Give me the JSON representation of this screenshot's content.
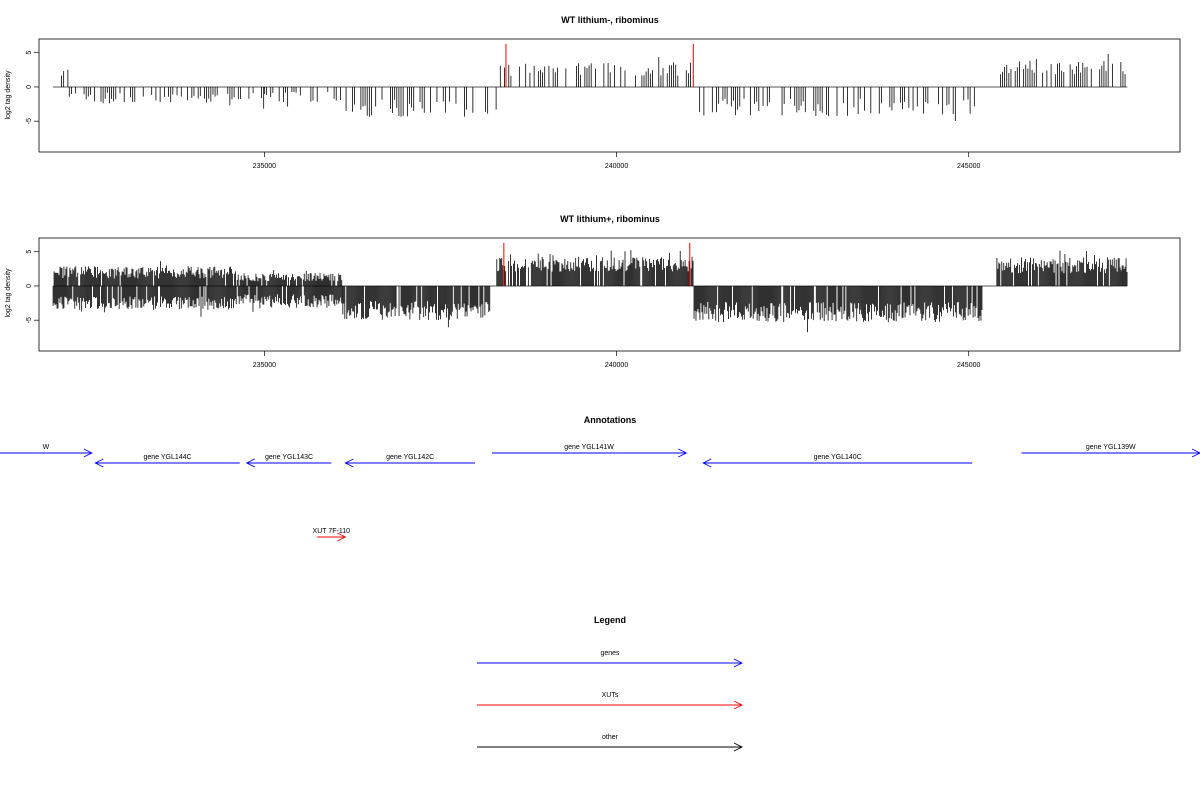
{
  "chart_data": [
    {
      "type": "bar",
      "title": "WT lithium-, ribominus",
      "xlabel": "",
      "ylabel": "log2 tag density",
      "xlim": [
        231800,
        248000
      ],
      "ylim": [
        -9.5,
        7
      ],
      "x_ticks": [
        235000,
        240000,
        245000
      ],
      "y_ticks": [
        -5,
        0,
        5
      ],
      "density": "sparse",
      "segments": [
        {
          "from": 232000,
          "to": 232250,
          "sign": 1,
          "mean": 1.8,
          "amp": 1.0
        },
        {
          "from": 232200,
          "to": 235000,
          "sign": -1,
          "mean": 1.6,
          "amp": 0.8
        },
        {
          "from": 235000,
          "to": 236100,
          "sign": -1,
          "mean": 1.5,
          "amp": 0.8
        },
        {
          "from": 236100,
          "to": 238300,
          "sign": -1,
          "mean": 3.2,
          "amp": 1.4
        },
        {
          "from": 238350,
          "to": 241050,
          "sign": 1,
          "mean": 2.6,
          "amp": 1.0
        },
        {
          "from": 241150,
          "to": 245100,
          "sign": -1,
          "mean": 3.0,
          "amp": 1.3
        },
        {
          "from": 245450,
          "to": 247250,
          "sign": 1,
          "mean": 2.8,
          "amp": 1.2
        }
      ],
      "highlights": [
        238430,
        241090
      ],
      "highlight_height": 6.3,
      "colors": {
        "bars": "#000000",
        "highlight": "#ff0000",
        "baseline": "#555555"
      }
    },
    {
      "type": "bar",
      "title": "WT lithium+, ribominus",
      "xlabel": "",
      "ylabel": "log2 tag density",
      "xlim": [
        231800,
        248000
      ],
      "ylim": [
        -9.5,
        7
      ],
      "x_ticks": [
        235000,
        240000,
        245000
      ],
      "y_ticks": [
        -5,
        0,
        5
      ],
      "density": "dense",
      "segments": [
        {
          "from": 232000,
          "to": 234600,
          "sign": 1,
          "mean": 2.0,
          "amp": 0.9
        },
        {
          "from": 232000,
          "to": 234600,
          "sign": -1,
          "mean": 2.5,
          "amp": 1.0
        },
        {
          "from": 234600,
          "to": 236100,
          "sign": 1,
          "mean": 1.3,
          "amp": 0.6
        },
        {
          "from": 234600,
          "to": 236100,
          "sign": -1,
          "mean": 2.2,
          "amp": 1.0
        },
        {
          "from": 236100,
          "to": 238200,
          "sign": -1,
          "mean": 3.6,
          "amp": 1.4
        },
        {
          "from": 238300,
          "to": 241100,
          "sign": 1,
          "mean": 3.2,
          "amp": 1.1
        },
        {
          "from": 241100,
          "to": 245200,
          "sign": -1,
          "mean": 3.8,
          "amp": 1.5
        },
        {
          "from": 245400,
          "to": 247250,
          "sign": 1,
          "mean": 3.0,
          "amp": 1.2
        }
      ],
      "highlights": [
        238400,
        241040
      ],
      "highlight_height": 6.3,
      "colors": {
        "bars": "#000000",
        "highlight": "#ff0000",
        "baseline": "#555555"
      }
    }
  ],
  "annotations": {
    "title": "Annotations",
    "features": [
      {
        "label": "W",
        "kind": "gene",
        "strand": "+",
        "from": 231200,
        "to": 232550,
        "row": 0
      },
      {
        "label": "gene YGL144C",
        "kind": "gene",
        "strand": "-",
        "from": 232600,
        "to": 234650,
        "row": 1
      },
      {
        "label": "gene YGL143C",
        "kind": "gene",
        "strand": "-",
        "from": 234750,
        "to": 235950,
        "row": 1
      },
      {
        "label": "gene YGL142C",
        "kind": "gene",
        "strand": "-",
        "from": 236150,
        "to": 237990,
        "row": 1
      },
      {
        "label": "gene YGL141W",
        "kind": "gene",
        "strand": "+",
        "from": 238230,
        "to": 240990,
        "row": 0
      },
      {
        "label": "gene YGL140C",
        "kind": "gene",
        "strand": "-",
        "from": 241230,
        "to": 245050,
        "row": 1
      },
      {
        "label": "gene YGL139W",
        "kind": "gene",
        "strand": "+",
        "from": 245750,
        "to": 248950,
        "row": 0
      },
      {
        "label": "XUT 7F-110",
        "kind": "xut",
        "strand": "+",
        "from": 235750,
        "to": 236150,
        "row": 2
      }
    ]
  },
  "legend": {
    "title": "Legend",
    "items": [
      {
        "label": "genes",
        "color": "#0000ff"
      },
      {
        "label": "XUTs",
        "color": "#ff0000"
      },
      {
        "label": "other",
        "color": "#000000"
      }
    ]
  },
  "colors": {
    "gene": "#0000ff",
    "xut": "#ff0000",
    "other": "#000000",
    "frame": "#000000"
  }
}
